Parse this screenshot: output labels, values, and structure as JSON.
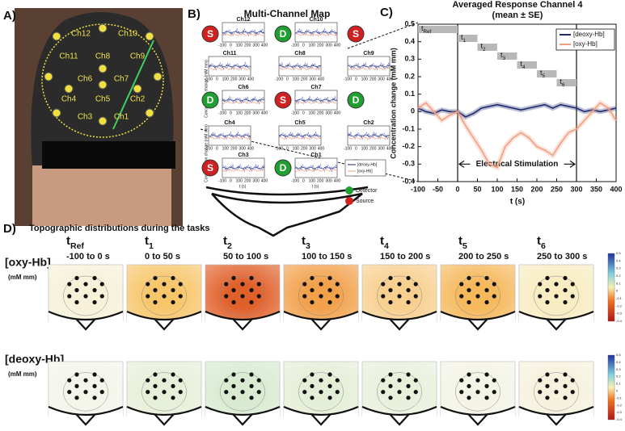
{
  "panel_labels": [
    "A)",
    "B)",
    "C)",
    "D)"
  ],
  "panel_a": {
    "channels": [
      "Ch1",
      "Ch2",
      "Ch3",
      "Ch4",
      "Ch5",
      "Ch6",
      "Ch7",
      "Ch8",
      "Ch9",
      "Ch10",
      "Ch11",
      "Ch12"
    ]
  },
  "panel_b": {
    "title": "Multi-Channel Map",
    "channels": [
      "Ch12",
      "Ch10",
      "Ch11",
      "Ch8",
      "Ch9",
      "Ch6",
      "Ch7",
      "Ch4",
      "Ch5",
      "Ch2",
      "Ch3",
      "Ch1"
    ],
    "x_label": "t (s)",
    "y_label": "Concentration change (mM mm)",
    "xticks": [
      "-100",
      "0",
      "100",
      "200",
      "300",
      "400"
    ],
    "legend": [
      "[deoxy-Hb]",
      "[oxy-Hb]"
    ],
    "detector": "Detector",
    "source": "Source",
    "source_letter": "S",
    "detector_letter": "D"
  },
  "chart_data": {
    "type": "line",
    "title": "Averaged Response Channel 4",
    "subtitle": "(mean ± SE)",
    "x_label": "t (s)",
    "y_label": "Concentration change (mM mm)",
    "x": [
      -100,
      -80,
      -60,
      -40,
      -20,
      0,
      20,
      40,
      60,
      80,
      100,
      120,
      140,
      160,
      180,
      200,
      220,
      240,
      260,
      280,
      300,
      320,
      340,
      360,
      380,
      400
    ],
    "series": [
      {
        "name": "[deoxy-Hb]",
        "color": "#1f2a6e",
        "values": [
          0.02,
          0.0,
          -0.01,
          0.01,
          0.0,
          0.0,
          -0.03,
          -0.01,
          0.02,
          0.03,
          0.04,
          0.03,
          0.02,
          0.01,
          0.02,
          0.03,
          0.04,
          0.02,
          0.04,
          0.03,
          0.02,
          0.0,
          0.01,
          0.0,
          0.01,
          0.02
        ]
      },
      {
        "name": "[oxy-Hb]",
        "color": "#f0a080",
        "values": [
          0.02,
          0.05,
          0.0,
          -0.05,
          -0.02,
          0.0,
          -0.08,
          -0.15,
          -0.22,
          -0.3,
          -0.32,
          -0.2,
          -0.15,
          -0.12,
          -0.15,
          -0.2,
          -0.22,
          -0.25,
          -0.18,
          -0.12,
          -0.1,
          -0.05,
          0.0,
          0.05,
          0.02,
          -0.05
        ]
      }
    ],
    "xlim": [
      -100,
      400
    ],
    "ylim": [
      -0.4,
      0.5
    ],
    "xticks": [
      -100,
      -50,
      0,
      50,
      100,
      150,
      200,
      250,
      300,
      350,
      400
    ],
    "yticks": [
      -0.4,
      -0.3,
      -0.2,
      -0.1,
      0,
      0.1,
      0.2,
      0.3,
      0.4,
      0.5
    ],
    "legend": "upper right",
    "stimulation": {
      "label": "Electrical Stimulation",
      "start": 0,
      "end": 300
    },
    "windows": [
      {
        "label": "t",
        "sub": "Ref",
        "start": -100,
        "end": 0
      },
      {
        "label": "t",
        "sub": "1",
        "start": 0,
        "end": 50
      },
      {
        "label": "t",
        "sub": "2",
        "start": 50,
        "end": 100
      },
      {
        "label": "t",
        "sub": "3",
        "start": 100,
        "end": 150
      },
      {
        "label": "t",
        "sub": "4",
        "start": 150,
        "end": 200
      },
      {
        "label": "t",
        "sub": "5",
        "start": 200,
        "end": 250
      },
      {
        "label": "t",
        "sub": "6",
        "start": 250,
        "end": 300
      }
    ]
  },
  "panel_d": {
    "title": "Topographic distributions during the tasks",
    "columns": [
      {
        "label": "t",
        "sub": "Ref",
        "range": "-100 to 0 s"
      },
      {
        "label": "t",
        "sub": "1",
        "range": "0 to 50 s"
      },
      {
        "label": "t",
        "sub": "2",
        "range": "50 to 100 s"
      },
      {
        "label": "t",
        "sub": "3",
        "range": "100 to 150 s"
      },
      {
        "label": "t",
        "sub": "4",
        "range": "150 to 200 s"
      },
      {
        "label": "t",
        "sub": "5",
        "range": "200 to 250 s"
      },
      {
        "label": "t",
        "sub": "6",
        "range": "250 to 300 s"
      }
    ],
    "rows": [
      {
        "name": "[oxy-Hb]",
        "unit": "(mM mm)",
        "colors": [
          "#f6f1d8",
          "#f7c66a",
          "#e0602a",
          "#f2a04a",
          "#f8cf8e",
          "#f5b85a",
          "#f8ecc0"
        ]
      },
      {
        "name": "[deoxy-Hb]",
        "unit": "(mM mm)",
        "colors": [
          "#f3f5ea",
          "#e6efd8",
          "#d8ead0",
          "#e4eed6",
          "#e8f0dc",
          "#f3f3e6",
          "#f6f1dc"
        ]
      }
    ],
    "colorbar_ticks": [
      0.5,
      0.4,
      0.3,
      0.2,
      0.1,
      0,
      -0.1,
      -0.2,
      -0.3,
      -0.4
    ]
  }
}
